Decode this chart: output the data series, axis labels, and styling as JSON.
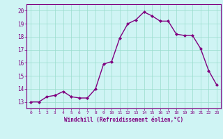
{
  "x": [
    0,
    1,
    2,
    3,
    4,
    5,
    6,
    7,
    8,
    9,
    10,
    11,
    12,
    13,
    14,
    15,
    16,
    17,
    18,
    19,
    20,
    21,
    22,
    23
  ],
  "y": [
    13.0,
    13.0,
    13.4,
    13.5,
    13.8,
    13.4,
    13.3,
    13.3,
    14.0,
    15.9,
    16.1,
    17.9,
    19.0,
    19.3,
    19.9,
    19.6,
    19.2,
    19.2,
    18.2,
    18.1,
    18.1,
    17.1,
    15.4,
    14.3
  ],
  "line_color": "#800080",
  "marker": "D",
  "markersize": 2.0,
  "linewidth": 1.0,
  "xlim": [
    -0.5,
    23.5
  ],
  "ylim": [
    12.5,
    20.5
  ],
  "yticks": [
    13,
    14,
    15,
    16,
    17,
    18,
    19,
    20
  ],
  "xticks": [
    0,
    1,
    2,
    3,
    4,
    5,
    6,
    7,
    8,
    9,
    10,
    11,
    12,
    13,
    14,
    15,
    16,
    17,
    18,
    19,
    20,
    21,
    22,
    23
  ],
  "xlabel": "Windchill (Refroidissement éolien,°C)",
  "bg_color": "#cff4f4",
  "grid_color": "#99ddcc",
  "tick_color": "#800080",
  "xlabel_fontsize": 5.5,
  "xtick_fontsize": 4.5,
  "ytick_fontsize": 5.5
}
